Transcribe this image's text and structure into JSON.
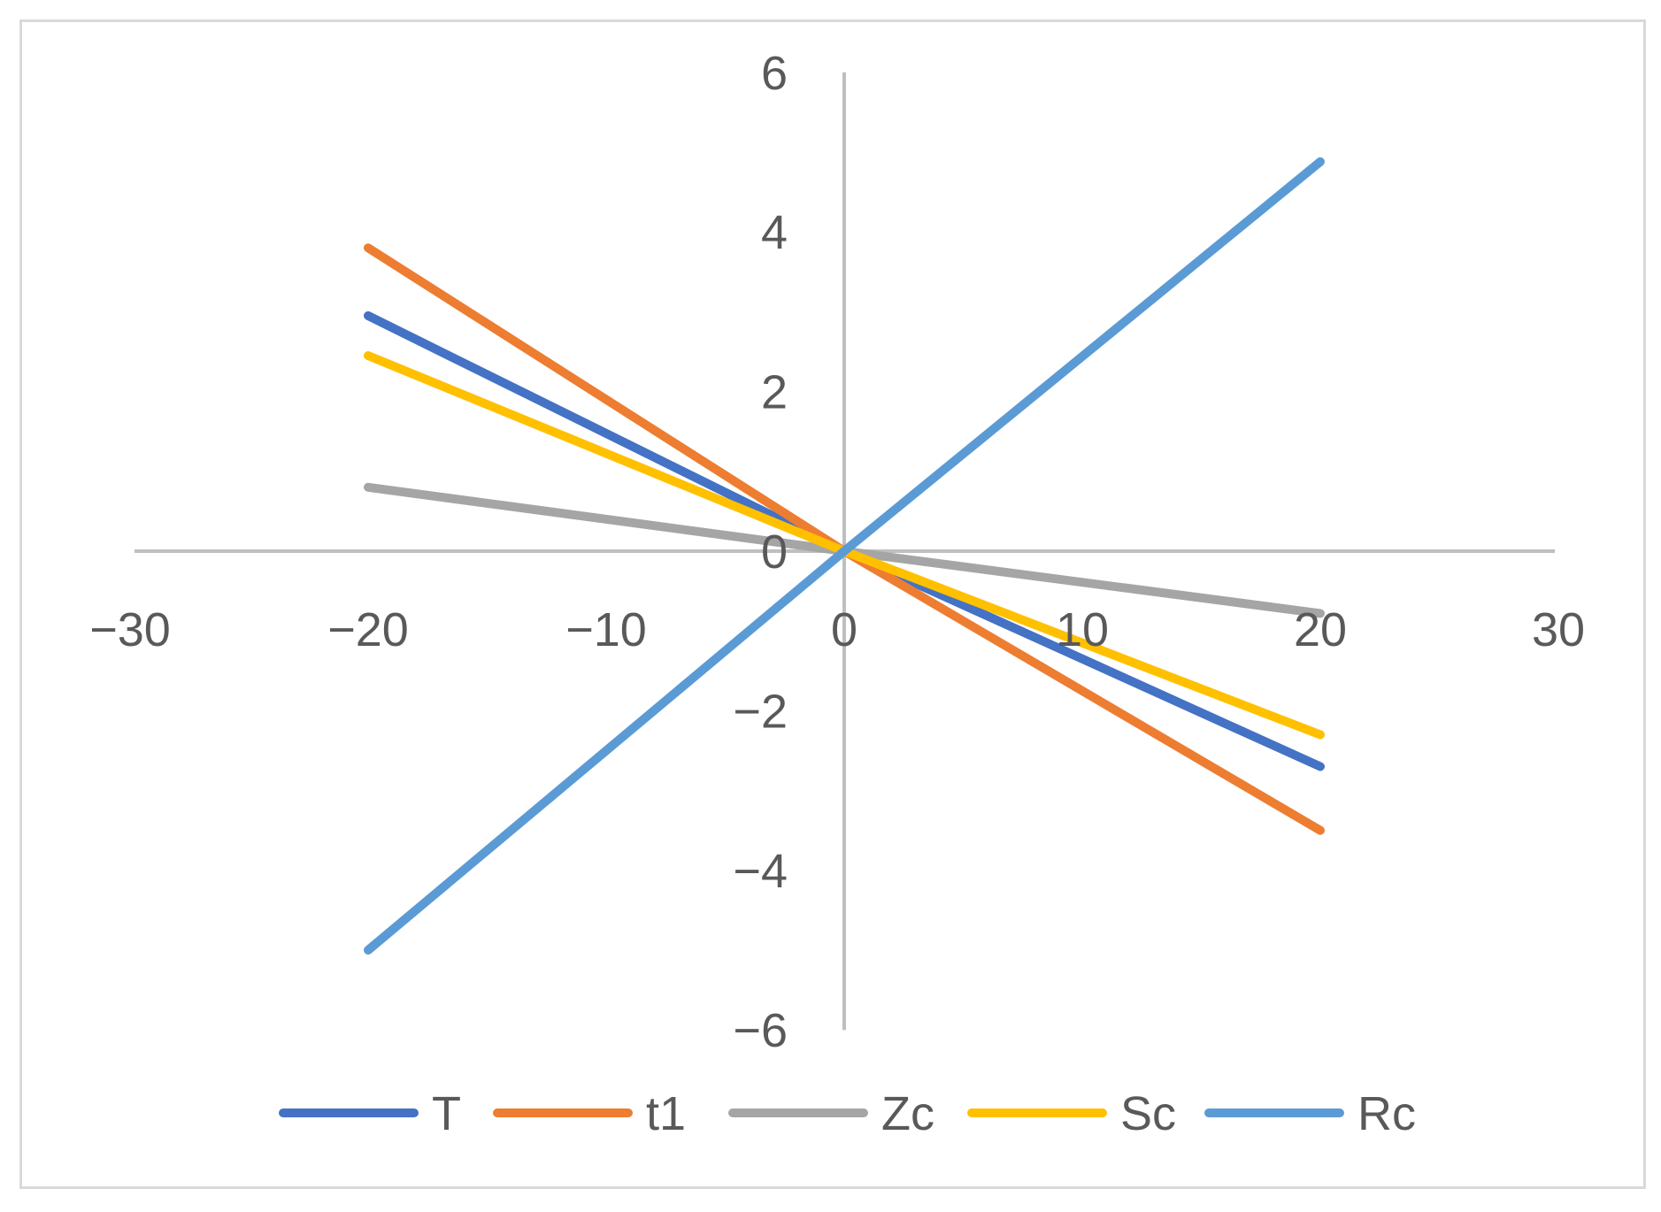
{
  "chart_data": {
    "type": "line",
    "title": "",
    "xlabel": "",
    "ylabel": "",
    "xlim": [
      -30,
      30
    ],
    "ylim": [
      -6,
      6
    ],
    "x_ticks": [
      {
        "value": -30,
        "label": "−30"
      },
      {
        "value": -20,
        "label": "−20"
      },
      {
        "value": -10,
        "label": "−10"
      },
      {
        "value": 0,
        "label": "0"
      },
      {
        "value": 10,
        "label": "10"
      },
      {
        "value": 20,
        "label": "20"
      },
      {
        "value": 30,
        "label": "30"
      }
    ],
    "y_ticks": [
      {
        "value": 6,
        "label": "6"
      },
      {
        "value": 4,
        "label": "4"
      },
      {
        "value": 2,
        "label": "2"
      },
      {
        "value": 0,
        "label": "0"
      },
      {
        "value": -2,
        "label": "−2"
      },
      {
        "value": -4,
        "label": "−4"
      },
      {
        "value": -6,
        "label": "−6"
      }
    ],
    "x": [
      -20,
      0,
      20
    ],
    "series": [
      {
        "name": "T",
        "color": "#4472C4",
        "values": [
          2.95,
          0,
          -2.7
        ]
      },
      {
        "name": "t1",
        "color": "#ED7D31",
        "values": [
          3.8,
          0,
          -3.5
        ]
      },
      {
        "name": "Zc",
        "color": "#A5A5A5",
        "values": [
          0.8,
          0,
          -0.78
        ]
      },
      {
        "name": "Sc",
        "color": "#FFC000",
        "values": [
          2.45,
          0,
          -2.3
        ]
      },
      {
        "name": "Rc",
        "color": "#5B9BD5",
        "values": [
          -5.0,
          0,
          4.88
        ]
      }
    ],
    "legend_position": "bottom",
    "grid": false,
    "axis_color": "#bfbfbf"
  }
}
